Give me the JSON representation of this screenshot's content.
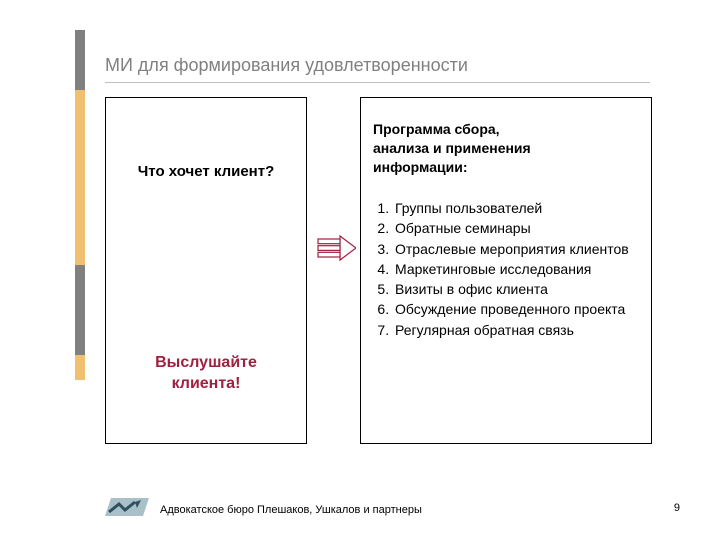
{
  "title": "МИ для формирования удовлетворенности",
  "accent_bar_colors": [
    "#808080",
    "#f0c070",
    "#808080",
    "#f0c070"
  ],
  "accent_bar_heights": [
    60,
    175,
    90,
    25
  ],
  "left_box": {
    "question": "Что хочет клиент?",
    "emphasis_lines": [
      "Выслушайте",
      "клиента!"
    ],
    "emphasis_color": "#a02040"
  },
  "right_box": {
    "heading_lines": [
      "Программа сбора,",
      "анализа и применения",
      "информации:"
    ],
    "items": [
      "Группы пользователей",
      "Обратные семинары",
      "Отраслевые мероприятия клиентов",
      "Маркетинговые исследования",
      "Визиты в офис клиента",
      "Обсуждение проведенного проекта",
      "Регулярная обратная связь"
    ]
  },
  "arrow": {
    "fill": "#ffffff",
    "stroke": "#a02040",
    "stripes": 3
  },
  "footer": {
    "text": "Адвокатское бюро Плешаков, Ушкалов и партнеры",
    "logo_colors": {
      "bg": "#a8c0c8",
      "arrow": "#305060"
    }
  },
  "page_number": "9"
}
